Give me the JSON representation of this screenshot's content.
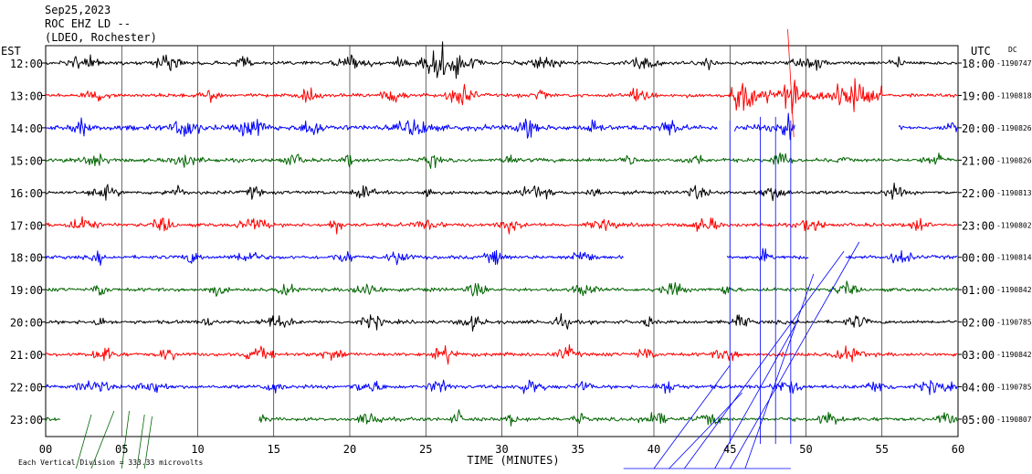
{
  "header": {
    "date": "Sep25,2023",
    "station": "ROC EHZ LD --",
    "network": "(LDEO, Rochester)"
  },
  "chart_data": {
    "type": "line",
    "left_axis_label": "EST",
    "right_axis_label": "UTC",
    "dc_label": "DC",
    "xlabel": "TIME (MINUTES)",
    "xlim": [
      0,
      60
    ],
    "x_ticks": [
      "00",
      "05",
      "10",
      "15",
      "20",
      "25",
      "30",
      "35",
      "40",
      "45",
      "50",
      "55",
      "60"
    ],
    "footer_scale": "Each Vertical Division = 333.33 microvolts",
    "rows": [
      {
        "local": "12:00",
        "utc": "18:00",
        "dc": "-1190747",
        "color": "#000000",
        "gaps": [],
        "bursts": [
          [
            23,
            29,
            3.0
          ],
          [
            49,
            50,
            2.0
          ]
        ]
      },
      {
        "local": "13:00",
        "utc": "19:00",
        "dc": "-1190818",
        "color": "#ff0000",
        "gaps": [],
        "bursts": [
          [
            45,
            55,
            3.5
          ],
          [
            48.5,
            49.5,
            6.0
          ],
          [
            26,
            28,
            1.5
          ]
        ]
      },
      {
        "local": "14:00",
        "utc": "20:00",
        "dc": "-1190826",
        "color": "#0000ff",
        "gaps": [
          [
            44.2,
            45.3
          ],
          [
            49.3,
            56.1
          ]
        ],
        "bursts": [
          [
            0,
            44,
            1.5
          ],
          [
            45,
            49,
            2.0
          ]
        ]
      },
      {
        "local": "15:00",
        "utc": "21:00",
        "dc": "-1190826",
        "color": "#006400",
        "gaps": [],
        "bursts": []
      },
      {
        "local": "16:00",
        "utc": "22:00",
        "dc": "-1190813",
        "color": "#000000",
        "gaps": [],
        "bursts": []
      },
      {
        "local": "17:00",
        "utc": "23:00",
        "dc": "-1190802",
        "color": "#ff0000",
        "gaps": [],
        "bursts": []
      },
      {
        "local": "18:00",
        "utc": "00:00",
        "dc": "-1190814",
        "color": "#0000ff",
        "gaps": [
          [
            38,
            44.8
          ],
          [
            50.2,
            52.6
          ]
        ],
        "bursts": []
      },
      {
        "local": "19:00",
        "utc": "01:00",
        "dc": "-1190842",
        "color": "#006400",
        "gaps": [],
        "bursts": []
      },
      {
        "local": "20:00",
        "utc": "02:00",
        "dc": "-1190785",
        "color": "#000000",
        "gaps": [],
        "bursts": []
      },
      {
        "local": "21:00",
        "utc": "03:00",
        "dc": "-1190842",
        "color": "#ff0000",
        "gaps": [],
        "bursts": []
      },
      {
        "local": "22:00",
        "utc": "04:00",
        "dc": "-1190785",
        "color": "#0000ff",
        "gaps": [],
        "bursts": []
      },
      {
        "local": "23:00",
        "utc": "05:00",
        "dc": "-1190807",
        "color": "#006400",
        "gaps": [
          [
            1,
            14
          ]
        ],
        "bursts": []
      }
    ]
  }
}
